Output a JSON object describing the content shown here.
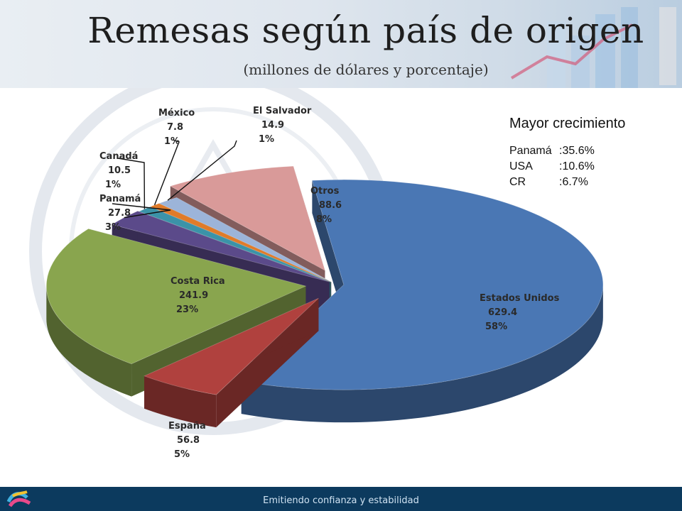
{
  "header": {
    "title": "Remesas según país de origen",
    "subtitle": "(millones de dólares y porcentaje)"
  },
  "chart_data": {
    "type": "pie",
    "categories": [
      "Estados Unidos",
      "España",
      "Costa Rica",
      "Panamá",
      "Canadá",
      "México",
      "El Salvador",
      "Otros"
    ],
    "values": [
      629.4,
      56.8,
      241.9,
      27.8,
      10.5,
      7.8,
      14.9,
      88.6
    ],
    "percent_labels": [
      "58%",
      "5%",
      "23%",
      "3%",
      "1%",
      "1%",
      "1%",
      "8%"
    ],
    "value_labels": [
      "629.4",
      "56.8",
      "241.9",
      "27.8",
      "10.5",
      "7.8",
      "14.9",
      "88.6"
    ],
    "exploded": true,
    "three_d": true,
    "colors": [
      "#4a77b4",
      "#b0413e",
      "#89a54e",
      "#5b4a8a",
      "#3b93a8",
      "#e07b29",
      "#9cb4d9",
      "#d99a99"
    ]
  },
  "growth_panel": {
    "title": "Mayor crecimiento",
    "rows": [
      {
        "name": "Panamá",
        "sep": ":",
        "value": "35.6%"
      },
      {
        "name": "USA",
        "sep": ":",
        "value": "10.6%"
      },
      {
        "name": "CR",
        "sep": ":",
        "value": "6.7%"
      }
    ]
  },
  "footer": {
    "tagline": "Emitiendo confianza y estabilidad"
  }
}
